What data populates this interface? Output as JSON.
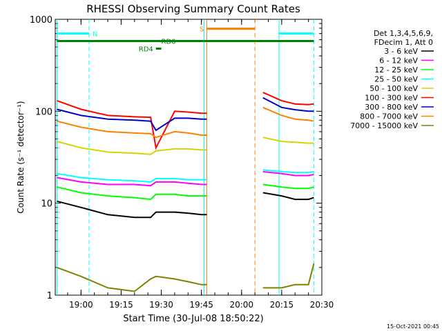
{
  "chart_data": {
    "type": "line",
    "title": "RHESSI Observing Summary Count Rates",
    "xlabel": "Start Time (30-Jul-08 18:50:22)",
    "ylabel": "Count Rate (s⁻¹ detector⁻¹)",
    "y_scale": "log",
    "ylim": [
      1,
      1000
    ],
    "xlim": [
      "18:50:22",
      "20:30:00"
    ],
    "x_ticks": [
      "19:00",
      "19:15",
      "19:30",
      "19:45",
      "20:00",
      "20:15",
      "20:30"
    ],
    "y_ticks": [
      "1",
      "10",
      "100",
      "1000"
    ],
    "legend_position": "right",
    "legend_header": [
      "Det 1,3,4,5,6,9,",
      "FDecim 1, Att 0"
    ],
    "footer_timestamp": "15-Oct-2021 00:45",
    "data_gaps": [
      [
        "19:47:00",
        "20:07:00"
      ]
    ],
    "series": [
      {
        "name": "3 - 6 keV",
        "color": "#000000",
        "x": [
          "18:51",
          "19:00",
          "19:10",
          "19:20",
          "19:26",
          "19:28",
          "19:35",
          "19:40",
          "19:45",
          "19:47",
          "20:08",
          "20:15",
          "20:20",
          "20:25",
          "20:27"
        ],
        "values": [
          10.5,
          9,
          7.5,
          7,
          7,
          8,
          8,
          7.8,
          7.5,
          7.5,
          13,
          12,
          11,
          11,
          11.5
        ]
      },
      {
        "name": "6 - 12 keV",
        "color": "#ff00ff",
        "x": [
          "18:51",
          "19:00",
          "19:10",
          "19:20",
          "19:26",
          "19:28",
          "19:35",
          "19:40",
          "19:45",
          "19:47",
          "20:08",
          "20:15",
          "20:20",
          "20:25",
          "20:27"
        ],
        "values": [
          19,
          17,
          16,
          16,
          15.5,
          17,
          17,
          16.5,
          16,
          16,
          22,
          21,
          20,
          20,
          20.5
        ]
      },
      {
        "name": "12 - 25 keV",
        "color": "#00ff00",
        "x": [
          "18:51",
          "19:00",
          "19:10",
          "19:20",
          "19:26",
          "19:28",
          "19:35",
          "19:40",
          "19:45",
          "19:47",
          "20:08",
          "20:15",
          "20:20",
          "20:25",
          "20:27"
        ],
        "values": [
          15,
          13,
          12,
          11.5,
          11,
          12.5,
          12.5,
          12,
          12,
          12,
          16,
          15,
          14.5,
          14.5,
          15
        ]
      },
      {
        "name": "25 - 50 keV",
        "color": "#00ffff",
        "x": [
          "18:51",
          "19:00",
          "19:10",
          "19:20",
          "19:26",
          "19:28",
          "19:35",
          "19:40",
          "19:45",
          "19:47",
          "20:08",
          "20:15",
          "20:20",
          "20:25",
          "20:27"
        ],
        "values": [
          21,
          19,
          18,
          17.5,
          17,
          18.5,
          18.5,
          18,
          18,
          18,
          23,
          22,
          21.5,
          21.5,
          22
        ]
      },
      {
        "name": "50 - 100 keV",
        "color": "#d4d400",
        "x": [
          "18:51",
          "19:00",
          "19:10",
          "19:20",
          "19:26",
          "19:28",
          "19:35",
          "19:40",
          "19:45",
          "19:47",
          "20:08",
          "20:15",
          "20:20",
          "20:25",
          "20:27"
        ],
        "values": [
          47,
          40,
          36,
          35,
          34,
          37,
          39,
          39,
          38,
          38,
          52,
          47,
          46,
          45,
          45
        ]
      },
      {
        "name": "100 - 300 keV",
        "color": "#ff0000",
        "x": [
          "18:51",
          "19:00",
          "19:10",
          "19:20",
          "19:26",
          "19:28",
          "19:35",
          "19:40",
          "19:45",
          "19:47",
          "20:08",
          "20:15",
          "20:20",
          "20:25",
          "20:27"
        ],
        "values": [
          130,
          105,
          90,
          87,
          86,
          40,
          100,
          98,
          95,
          95,
          160,
          130,
          120,
          118,
          120
        ]
      },
      {
        "name": "300 - 800 keV",
        "color": "#0000cc",
        "x": [
          "18:51",
          "19:00",
          "19:10",
          "19:20",
          "19:26",
          "19:28",
          "19:35",
          "19:40",
          "19:45",
          "19:47",
          "20:08",
          "20:15",
          "20:20",
          "20:25",
          "20:27"
        ],
        "values": [
          105,
          90,
          82,
          80,
          78,
          62,
          84,
          84,
          82,
          82,
          140,
          110,
          104,
          100,
          100
        ]
      },
      {
        "name": "800 - 7000 keV",
        "color": "#ff8000",
        "x": [
          "18:51",
          "19:00",
          "19:10",
          "19:20",
          "19:26",
          "19:28",
          "19:35",
          "19:40",
          "19:45",
          "19:47",
          "20:08",
          "20:15",
          "20:20",
          "20:25",
          "20:27"
        ],
        "values": [
          78,
          67,
          60,
          58,
          57,
          52,
          60,
          58,
          55,
          55,
          110,
          90,
          82,
          80,
          78
        ]
      },
      {
        "name": "7000 - 15000 keV",
        "color": "#808000",
        "x": [
          "18:51",
          "19:00",
          "19:10",
          "19:20",
          "19:26",
          "19:28",
          "19:35",
          "19:40",
          "19:45",
          "19:47",
          "20:08",
          "20:15",
          "20:20",
          "20:25",
          "20:27"
        ],
        "values": [
          2,
          1.6,
          1.2,
          1.1,
          1.5,
          1.6,
          1.5,
          1.4,
          1.3,
          1.3,
          1.2,
          1.2,
          1.3,
          1.3,
          2.2
        ]
      }
    ],
    "vertical_markers": [
      {
        "x": "18:51:00",
        "color": "#00ffff",
        "style": "solid"
      },
      {
        "x": "19:03:00",
        "color": "#00ffff",
        "style": "dashed"
      },
      {
        "x": "19:46:00",
        "color": "#00ffff",
        "style": "solid"
      },
      {
        "x": "19:47:00",
        "color": "#ff8000",
        "style": "solid"
      },
      {
        "x": "20:05:00",
        "color": "#ff8000",
        "style": "dashed"
      },
      {
        "x": "20:14:00",
        "color": "#00ffff",
        "style": "solid"
      },
      {
        "x": "20:27:00",
        "color": "#00ffff",
        "style": "dashed"
      }
    ],
    "flag_bars": [
      {
        "label": "N",
        "color": "#00ffff",
        "segments": [
          [
            "18:51:00",
            "19:03:00"
          ],
          [
            "20:14:00",
            "20:27:00"
          ]
        ],
        "level": 700
      },
      {
        "label": "S",
        "color": "#ff8000",
        "segments": [
          [
            "19:47:00",
            "20:05:00"
          ]
        ],
        "level": 790
      },
      {
        "label": "RD0",
        "color": "#008000",
        "segments": [
          [
            "18:51:00",
            "20:27:00"
          ]
        ],
        "level": 580
      },
      {
        "label": "RD4",
        "color": "#008000",
        "segments": [
          [
            "19:28:00",
            "19:30:00"
          ]
        ],
        "level": 480
      }
    ]
  }
}
